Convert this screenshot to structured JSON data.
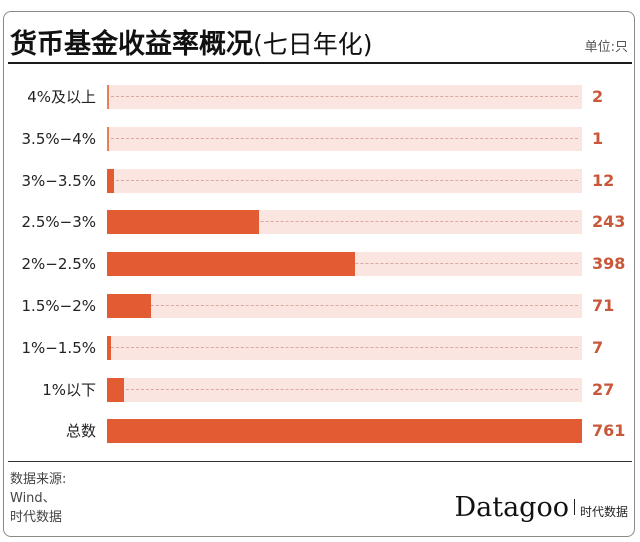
{
  "header": {
    "title_main": "货币基金收益率概况",
    "title_sub": "(七日年化)",
    "unit": "单位:只"
  },
  "footer": {
    "source_lines": [
      "数据来源:",
      "Wind、",
      "时代数据"
    ],
    "logo_brand": "Datagoo",
    "logo_cn": "时代数据"
  },
  "colors": {
    "bar": "#e35b32",
    "track": "#fbe5e0",
    "value_text": "#c9583a"
  },
  "chart_data": {
    "type": "bar",
    "orientation": "horizontal",
    "title": "货币基金收益率概况(七日年化)",
    "unit": "单位:只",
    "categories": [
      "4%及以上",
      "3.5%-4%",
      "3%-3.5%",
      "2.5%-3%",
      "2%-2.5%",
      "1.5%-2%",
      "1%-1.5%",
      "1%以下",
      "总数"
    ],
    "values": [
      2,
      1,
      12,
      243,
      398,
      71,
      7,
      27,
      761
    ],
    "xlabel": "",
    "ylabel": "",
    "xlim": [
      0,
      761
    ],
    "grid": false,
    "legend": null,
    "source": "数据来源: Wind、时代数据"
  },
  "rows": [
    {
      "label": "4%及以上",
      "value": "2"
    },
    {
      "label": "3.5%−4%",
      "value": "1"
    },
    {
      "label": "3%−3.5%",
      "value": "12"
    },
    {
      "label": "2.5%−3%",
      "value": "243"
    },
    {
      "label": "2%−2.5%",
      "value": "398"
    },
    {
      "label": "1.5%−2%",
      "value": "71"
    },
    {
      "label": "1%−1.5%",
      "value": "7"
    },
    {
      "label": "1%以下",
      "value": "27"
    },
    {
      "label": "总数",
      "value": "761"
    }
  ]
}
